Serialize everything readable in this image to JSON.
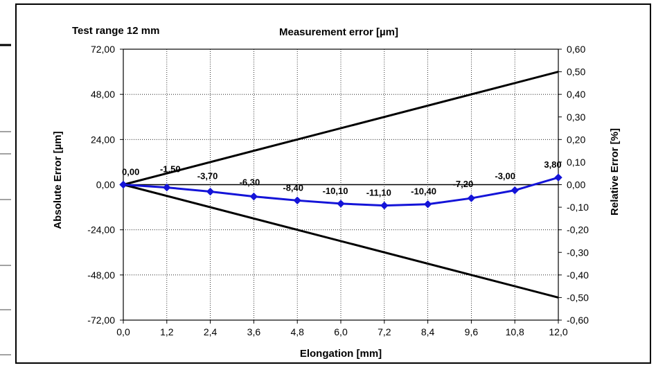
{
  "header": {
    "test_range": "Test range  12 mm",
    "title": "Measurement error [µm]"
  },
  "chart_data": {
    "type": "line",
    "title": "Measurement error [µm]",
    "xlabel": "Elongation [mm]",
    "ylabel": "Absolute Error [µm]",
    "y2label": "Relative Error [%]",
    "xlim": [
      0,
      12
    ],
    "ylim": [
      -72,
      72
    ],
    "y2lim": [
      -0.6,
      0.6
    ],
    "grid": true,
    "x_ticks": [
      "0,0",
      "1,2",
      "2,4",
      "3,6",
      "4,8",
      "6,0",
      "7,2",
      "8,4",
      "9,6",
      "10,8",
      "12,0"
    ],
    "y_ticks": [
      "72,00",
      "48,00",
      "24,00",
      "0,00",
      "-24,00",
      "-48,00",
      "-72,00"
    ],
    "y2_ticks": [
      "0,60",
      "0,50",
      "0,40",
      "0,30",
      "0,20",
      "0,10",
      "0,00",
      "-0,10",
      "-0,20",
      "-0,30",
      "-0,40",
      "-0,50",
      "-0,60"
    ],
    "series": [
      {
        "x": [
          0,
          1.2,
          2.4,
          3.6,
          4.8,
          6.0,
          7.2,
          8.4,
          9.6,
          10.8,
          12.0
        ],
        "y": [
          0.0,
          -1.5,
          -3.7,
          -6.3,
          -8.4,
          -10.1,
          -11.1,
          -10.4,
          -7.2,
          -3.0,
          3.8
        ],
        "labels": [
          "0,00",
          "-1,50",
          "-3,70",
          "-6,30",
          "-8,40",
          "-10,10",
          "-11,10",
          "-10,40",
          "-7,20",
          "-3,00",
          "3,80"
        ],
        "color": "#1414d8",
        "marker": "diamond"
      },
      {
        "x": [
          0,
          12
        ],
        "y": [
          0,
          60
        ],
        "color": "#000000"
      },
      {
        "x": [
          0,
          12
        ],
        "y": [
          0,
          -60
        ],
        "color": "#000000"
      }
    ]
  }
}
